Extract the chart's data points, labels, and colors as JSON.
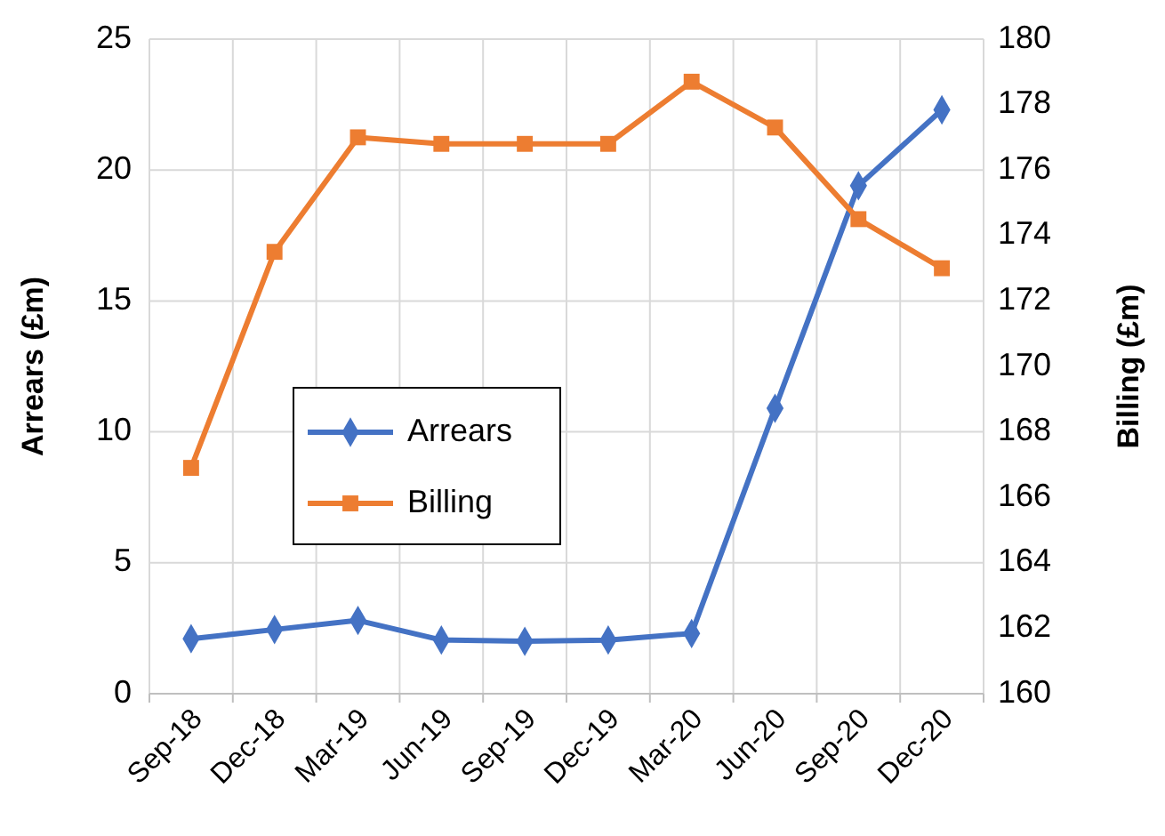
{
  "chart_data": {
    "type": "line",
    "categories": [
      "Sep-18",
      "Dec-18",
      "Mar-19",
      "Jun-19",
      "Sep-19",
      "Dec-19",
      "Mar-20",
      "Jun-20",
      "Sep-20",
      "Dec-20"
    ],
    "series": [
      {
        "name": "Arrears",
        "color": "#4472c4",
        "marker": "diamond",
        "values": [
          2.1,
          2.45,
          2.8,
          2.05,
          2.0,
          2.05,
          2.3,
          10.9,
          19.4,
          22.3
        ]
      },
      {
        "name": "Billing",
        "color": "#ed7d31",
        "marker": "square",
        "axis": "y2",
        "values": [
          166.9,
          173.5,
          177.0,
          176.8,
          176.8,
          176.8,
          178.7,
          177.3,
          174.5,
          173.0
        ]
      }
    ],
    "ylabel": "Arrears (£m)",
    "y2label": "Billing (£m)",
    "ylim": [
      0,
      25
    ],
    "yticks": [
      0,
      5,
      10,
      15,
      20,
      25
    ],
    "y2lim": [
      160,
      180
    ],
    "y2ticks": [
      160,
      162,
      164,
      166,
      168,
      170,
      172,
      174,
      176,
      178,
      180
    ],
    "grid": true,
    "legend": "center left"
  }
}
